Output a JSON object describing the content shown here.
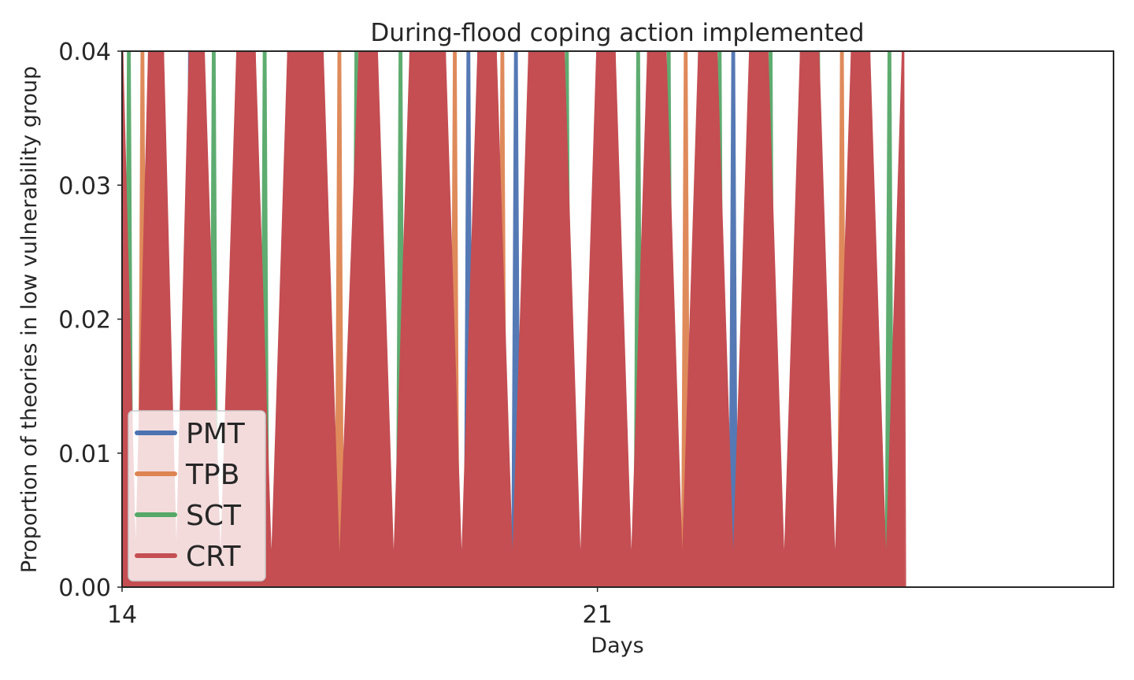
{
  "chart_data": {
    "type": "area",
    "title": "During-flood coping action implemented",
    "xlabel": "Days",
    "ylabel": "Proportion of theories in low vulnerability group",
    "xlim": [
      14,
      28.6
    ],
    "ylim": [
      0,
      0.04
    ],
    "x_ticks": [
      {
        "value": 14,
        "label": "14"
      },
      {
        "value": 21,
        "label": "21"
      }
    ],
    "y_ticks": [
      {
        "value": 0.0,
        "label": "0.00"
      },
      {
        "value": 0.01,
        "label": "0.01"
      },
      {
        "value": 0.02,
        "label": "0.02"
      },
      {
        "value": 0.03,
        "label": "0.03"
      },
      {
        "value": 0.04,
        "label": "0.04"
      }
    ],
    "grid": false,
    "legend_position": "lower-left",
    "colors": {
      "PMT": "#4c72b0",
      "TPB": "#dd8452",
      "SCT": "#55a868",
      "CRT": "#c44e52",
      "axes": "#262626",
      "background": "#ffffff"
    },
    "series": [
      {
        "name": "PMT",
        "x": [
          14.45,
          15.0,
          17.6,
          19.1,
          19.8,
          23.0,
          23.3
        ],
        "values": [
          0.04,
          0.04,
          0.04,
          0.04,
          0.04,
          0.04,
          0.04
        ]
      },
      {
        "name": "TPB",
        "x": [
          14.3,
          15.15,
          15.8,
          16.5,
          17.2,
          18.9,
          19.6,
          21.2,
          22.3,
          23.4,
          24.1,
          24.6
        ],
        "values": [
          0.04,
          0.04,
          0.04,
          0.04,
          0.04,
          0.04,
          0.04,
          0.04,
          0.04,
          0.04,
          0.04,
          0.04
        ]
      },
      {
        "name": "SCT",
        "x": [
          14.1,
          14.55,
          15.35,
          16.1,
          16.8,
          17.45,
          18.1,
          18.6,
          19.3,
          20.05,
          20.55,
          21.6,
          22.05,
          22.8,
          23.55,
          24.25,
          24.8,
          25.3
        ],
        "values": [
          0.04,
          0.04,
          0.04,
          0.04,
          0.04,
          0.04,
          0.04,
          0.04,
          0.04,
          0.04,
          0.04,
          0.04,
          0.04,
          0.04,
          0.04,
          0.04,
          0.04,
          0.04
        ]
      },
      {
        "name": "CRT",
        "x": [
          14.0,
          14.2,
          14.4,
          14.6,
          14.8,
          15.0,
          15.2,
          15.45,
          15.7,
          15.95,
          16.2,
          16.45,
          16.7,
          16.95,
          17.2,
          17.5,
          17.75,
          18.0,
          18.25,
          18.5,
          18.75,
          19.0,
          19.25,
          19.5,
          19.75,
          20.0,
          20.25,
          20.5,
          20.75,
          21.0,
          21.25,
          21.5,
          21.75,
          22.0,
          22.25,
          22.5,
          22.75,
          23.0,
          23.25,
          23.5,
          23.75,
          24.0,
          24.25,
          24.5,
          24.75,
          25.0,
          25.25,
          25.5
        ],
        "values": [
          0.04,
          0.0,
          0.04,
          0.04,
          0.0,
          0.04,
          0.04,
          0.0,
          0.04,
          0.04,
          0.0,
          0.04,
          0.04,
          0.04,
          0.0,
          0.04,
          0.04,
          0.0,
          0.04,
          0.04,
          0.04,
          0.0,
          0.04,
          0.04,
          0.0,
          0.04,
          0.04,
          0.04,
          0.0,
          0.04,
          0.04,
          0.0,
          0.04,
          0.04,
          0.0,
          0.04,
          0.04,
          0.0,
          0.04,
          0.04,
          0.0,
          0.04,
          0.04,
          0.0,
          0.04,
          0.04,
          0.0,
          0.04
        ]
      }
    ]
  }
}
